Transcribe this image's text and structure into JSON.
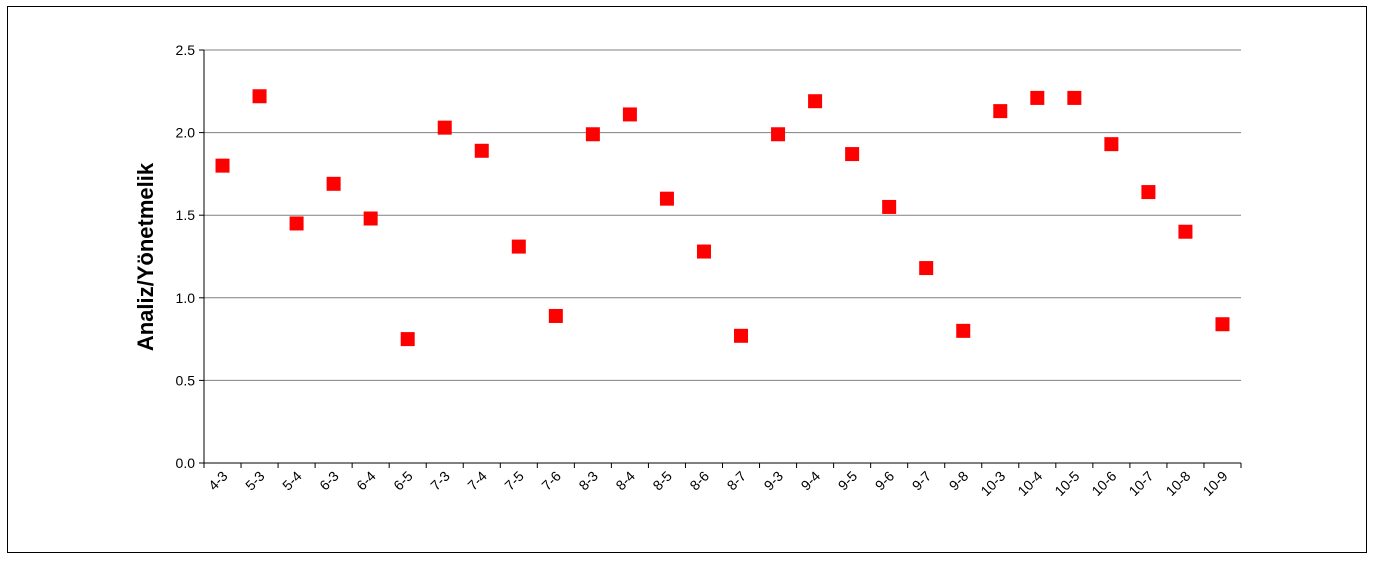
{
  "chart_data": {
    "type": "scatter",
    "title": "",
    "xlabel": "",
    "ylabel": "Analiz/Yönetmelik",
    "categories": [
      "4-3",
      "5-3",
      "5-4",
      "6-3",
      "6-4",
      "6-5",
      "7-3",
      "7-4",
      "7-5",
      "7-6",
      "8-3",
      "8-4",
      "8-5",
      "8-6",
      "8-7",
      "9-3",
      "9-4",
      "9-5",
      "9-6",
      "9-7",
      "9-8",
      "10-3",
      "10-4",
      "10-5",
      "10-6",
      "10-7",
      "10-8",
      "10-9"
    ],
    "values": [
      1.8,
      2.22,
      1.45,
      1.69,
      1.48,
      0.75,
      2.03,
      1.89,
      1.31,
      0.89,
      1.99,
      2.11,
      1.6,
      1.28,
      0.77,
      1.99,
      2.19,
      1.87,
      1.55,
      1.18,
      0.8,
      2.13,
      2.21,
      2.21,
      1.93,
      1.64,
      1.4,
      0.84
    ],
    "ylim": [
      0,
      2.5
    ],
    "yticks": [
      "0.0",
      "0.5",
      "1.0",
      "1.5",
      "2.0",
      "2.5"
    ],
    "grid": true,
    "legend": "none",
    "marker_color": "#ff0000",
    "gridline_color": "#808080"
  }
}
